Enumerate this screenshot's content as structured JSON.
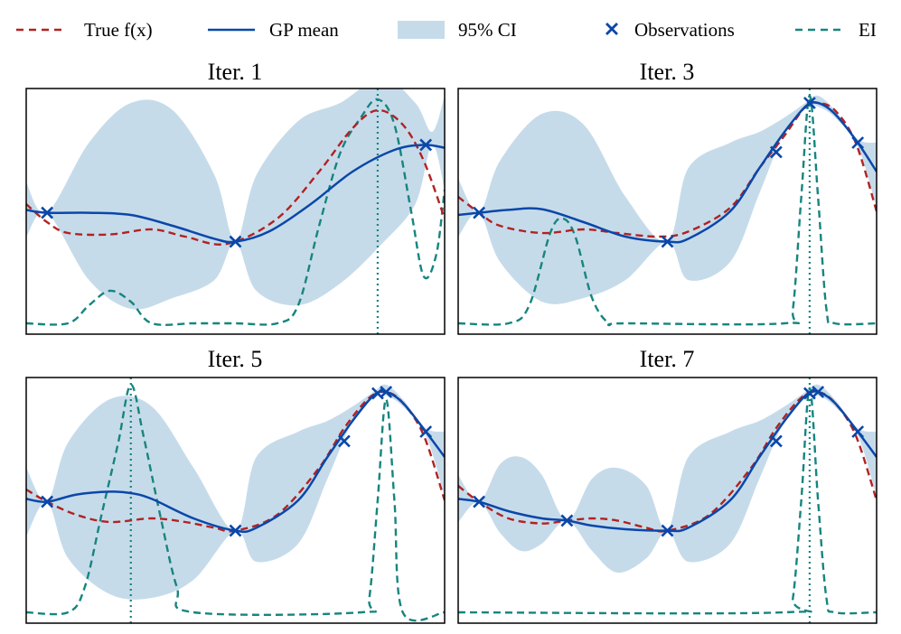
{
  "legend": {
    "true_fx": "True f(x)",
    "gp_mean": "GP mean",
    "ci": "95% CI",
    "observations": "Observations",
    "ei": "EI"
  },
  "colors": {
    "true_fx": "#b22222",
    "gp_mean": "#0a47a9",
    "ci": "#c6dbea",
    "observations": "#0a47a9",
    "ei": "#16857f",
    "proposal": "#16857f"
  },
  "chart_data": [
    {
      "type": "line",
      "title": "Iter. 1",
      "xlim": [
        0,
        1
      ],
      "ylim": [
        -1.7,
        1.7
      ],
      "xlabel": "",
      "ylabel": "",
      "grid": false,
      "series": {
        "true_fx": {
          "x": [
            0,
            0.05,
            0.1,
            0.2,
            0.3,
            0.38,
            0.48,
            0.6,
            0.7,
            0.78,
            0.84,
            0.9,
            0.95,
            1.0
          ],
          "y": [
            0.1,
            -0.15,
            -0.3,
            -0.32,
            -0.25,
            -0.35,
            -0.45,
            -0.1,
            0.55,
            1.15,
            1.4,
            1.2,
            0.7,
            -0.1
          ]
        },
        "gp_mean": {
          "x": [
            0,
            0.05,
            0.15,
            0.25,
            0.35,
            0.45,
            0.5,
            0.58,
            0.68,
            0.78,
            0.88,
            0.95,
            1.0
          ],
          "y": [
            0.02,
            -0.02,
            -0.02,
            -0.05,
            -0.2,
            -0.38,
            -0.42,
            -0.28,
            0.1,
            0.55,
            0.85,
            0.92,
            0.88
          ]
        },
        "ci_upper": {
          "x": [
            0,
            0.05,
            0.15,
            0.25,
            0.35,
            0.45,
            0.5,
            0.55,
            0.65,
            0.75,
            0.85,
            0.93,
            0.97,
            1.0
          ],
          "y": [
            0.4,
            -0.02,
            0.95,
            1.5,
            1.4,
            0.5,
            -0.42,
            0.5,
            1.25,
            1.5,
            1.85,
            1.5,
            1.1,
            1.6
          ]
        },
        "ci_lower": {
          "x": [
            0,
            0.05,
            0.15,
            0.25,
            0.35,
            0.45,
            0.5,
            0.55,
            0.65,
            0.75,
            0.85,
            0.93,
            0.97,
            1.0
          ],
          "y": [
            -0.35,
            -0.02,
            -0.95,
            -1.35,
            -1.2,
            -0.95,
            -0.42,
            -1.1,
            -1.3,
            -1.0,
            -0.45,
            0.1,
            0.92,
            0.3
          ]
        },
        "ei": {
          "x": [
            0,
            0.1,
            0.15,
            0.2,
            0.25,
            0.3,
            0.4,
            0.5,
            0.6,
            0.65,
            0.7,
            0.75,
            0.8,
            0.84,
            0.88,
            0.92,
            0.95,
            0.98,
            1.0
          ],
          "y": [
            -1.55,
            -1.55,
            -1.3,
            -1.1,
            -1.25,
            -1.55,
            -1.55,
            -1.55,
            -1.55,
            -1.3,
            -0.2,
            0.8,
            1.3,
            1.55,
            1.2,
            0.0,
            -0.9,
            -0.6,
            0.3
          ]
        },
        "observations": {
          "x": [
            0.05,
            0.5,
            0.955
          ],
          "y": [
            -0.02,
            -0.42,
            0.92
          ]
        },
        "proposal_x": 0.84
      }
    },
    {
      "type": "line",
      "title": "Iter. 3",
      "xlim": [
        0,
        1
      ],
      "ylim": [
        -1.7,
        1.7
      ],
      "xlabel": "",
      "ylabel": "",
      "grid": false,
      "series": {
        "true_fx": {
          "x": [
            0,
            0.05,
            0.1,
            0.2,
            0.3,
            0.38,
            0.48,
            0.55,
            0.65,
            0.72,
            0.78,
            0.83,
            0.86,
            0.9,
            0.95,
            1.0
          ],
          "y": [
            0.2,
            -0.02,
            -0.2,
            -0.3,
            -0.25,
            -0.3,
            -0.35,
            -0.28,
            0.05,
            0.6,
            1.05,
            1.45,
            1.5,
            1.4,
            0.95,
            0.0
          ]
        },
        "gp_mean": {
          "x": [
            0,
            0.05,
            0.12,
            0.2,
            0.3,
            0.4,
            0.5,
            0.55,
            0.65,
            0.72,
            0.78,
            0.83,
            0.86,
            0.9,
            0.955,
            1.0
          ],
          "y": [
            -0.05,
            -0.02,
            0.02,
            0.03,
            -0.15,
            -0.35,
            -0.42,
            -0.38,
            0.0,
            0.6,
            1.1,
            1.45,
            1.5,
            1.35,
            0.95,
            0.55
          ]
        },
        "ci_upper": {
          "x": [
            0,
            0.05,
            0.1,
            0.2,
            0.3,
            0.4,
            0.5,
            0.55,
            0.65,
            0.72,
            0.78,
            0.83,
            0.86,
            0.9,
            0.955,
            1.0
          ],
          "y": [
            0.45,
            -0.02,
            0.7,
            1.35,
            1.2,
            0.2,
            -0.42,
            0.6,
            0.95,
            1.1,
            1.3,
            1.5,
            1.6,
            1.4,
            1.0,
            0.95
          ]
        },
        "ci_lower": {
          "x": [
            0,
            0.05,
            0.1,
            0.2,
            0.3,
            0.4,
            0.5,
            0.55,
            0.65,
            0.72,
            0.78,
            0.83,
            0.86,
            0.9,
            0.955,
            1.0
          ],
          "y": [
            -0.35,
            -0.02,
            -0.7,
            -1.25,
            -1.2,
            -0.95,
            -0.42,
            -0.95,
            -0.7,
            0.25,
            1.1,
            1.45,
            1.45,
            1.3,
            0.9,
            0.05
          ]
        },
        "ei": {
          "x": [
            0,
            0.12,
            0.17,
            0.22,
            0.25,
            0.28,
            0.32,
            0.36,
            0.4,
            0.78,
            0.8,
            0.82,
            0.84,
            0.86,
            0.88,
            0.9,
            1.0
          ],
          "y": [
            -1.55,
            -1.55,
            -1.3,
            -0.3,
            -0.1,
            -0.35,
            -1.2,
            -1.55,
            -1.55,
            -1.55,
            -1.35,
            0.2,
            1.6,
            0.2,
            -1.35,
            -1.55,
            -1.55
          ]
        },
        "observations": {
          "x": [
            0.05,
            0.5,
            0.76,
            0.84,
            0.955
          ],
          "y": [
            -0.02,
            -0.42,
            0.82,
            1.5,
            0.95
          ]
        },
        "proposal_x": 0.84
      }
    },
    {
      "type": "line",
      "title": "Iter. 5",
      "xlim": [
        0,
        1
      ],
      "ylim": [
        -1.7,
        1.7
      ],
      "xlabel": "",
      "ylabel": "",
      "grid": false,
      "series": {
        "true_fx": {
          "x": [
            0,
            0.05,
            0.12,
            0.2,
            0.3,
            0.38,
            0.45,
            0.5,
            0.6,
            0.7,
            0.76,
            0.82,
            0.86,
            0.9,
            0.95,
            1.0
          ],
          "y": [
            0.15,
            -0.02,
            -0.2,
            -0.3,
            -0.25,
            -0.3,
            -0.38,
            -0.42,
            -0.2,
            0.45,
            1.0,
            1.42,
            1.5,
            1.35,
            0.9,
            0.0
          ]
        },
        "gp_mean": {
          "x": [
            0,
            0.05,
            0.12,
            0.2,
            0.25,
            0.3,
            0.4,
            0.5,
            0.55,
            0.65,
            0.72,
            0.78,
            0.83,
            0.86,
            0.9,
            0.955,
            1.0
          ],
          "y": [
            0.02,
            -0.02,
            0.08,
            0.12,
            0.1,
            0.02,
            -0.25,
            -0.42,
            -0.38,
            0.0,
            0.6,
            1.1,
            1.45,
            1.5,
            1.35,
            0.95,
            0.6
          ]
        },
        "ci_upper": {
          "x": [
            0,
            0.05,
            0.1,
            0.2,
            0.3,
            0.4,
            0.5,
            0.55,
            0.65,
            0.72,
            0.78,
            0.83,
            0.86,
            0.9,
            0.955,
            1.0
          ],
          "y": [
            0.45,
            -0.02,
            0.8,
            1.4,
            1.3,
            0.45,
            -0.42,
            0.6,
            0.95,
            1.1,
            1.3,
            1.5,
            1.6,
            1.4,
            1.0,
            0.95
          ]
        },
        "ci_lower": {
          "x": [
            0,
            0.05,
            0.1,
            0.2,
            0.3,
            0.4,
            0.5,
            0.55,
            0.65,
            0.72,
            0.78,
            0.83,
            0.86,
            0.9,
            0.955,
            1.0
          ],
          "y": [
            -0.5,
            -0.02,
            -0.8,
            -1.3,
            -1.35,
            -1.1,
            -0.42,
            -0.85,
            -0.6,
            0.3,
            1.1,
            1.45,
            1.45,
            1.3,
            0.9,
            0.05
          ]
        },
        "ei": {
          "x": [
            0,
            0.1,
            0.14,
            0.18,
            0.22,
            0.25,
            0.28,
            0.32,
            0.36,
            0.4,
            0.8,
            0.82,
            0.84,
            0.86,
            0.88,
            0.9,
            1.0
          ],
          "y": [
            -1.55,
            -1.55,
            -1.2,
            -0.2,
            0.8,
            1.6,
            0.9,
            -0.2,
            -1.2,
            -1.55,
            -1.55,
            -1.35,
            0.0,
            1.4,
            0.0,
            -1.55,
            -1.55
          ]
        },
        "observations": {
          "x": [
            0.05,
            0.5,
            0.76,
            0.84,
            0.86,
            0.955
          ],
          "y": [
            -0.02,
            -0.42,
            0.82,
            1.48,
            1.5,
            0.95
          ]
        },
        "proposal_x": 0.25
      }
    },
    {
      "type": "line",
      "title": "Iter. 7",
      "xlim": [
        0,
        1
      ],
      "ylim": [
        -1.7,
        1.7
      ],
      "xlabel": "",
      "ylabel": "",
      "grid": false,
      "series": {
        "true_fx": {
          "x": [
            0,
            0.05,
            0.12,
            0.2,
            0.26,
            0.32,
            0.38,
            0.45,
            0.5,
            0.6,
            0.7,
            0.76,
            0.82,
            0.86,
            0.9,
            0.95,
            1.0
          ],
          "y": [
            0.2,
            -0.02,
            -0.25,
            -0.32,
            -0.28,
            -0.25,
            -0.28,
            -0.38,
            -0.42,
            -0.2,
            0.45,
            1.0,
            1.42,
            1.5,
            1.35,
            0.9,
            0.0
          ]
        },
        "gp_mean": {
          "x": [
            0,
            0.05,
            0.12,
            0.2,
            0.26,
            0.32,
            0.4,
            0.5,
            0.55,
            0.65,
            0.72,
            0.78,
            0.83,
            0.86,
            0.9,
            0.955,
            1.0
          ],
          "y": [
            0.02,
            -0.02,
            -0.15,
            -0.25,
            -0.28,
            -0.35,
            -0.4,
            -0.42,
            -0.38,
            0.0,
            0.6,
            1.1,
            1.45,
            1.5,
            1.35,
            0.95,
            0.6
          ]
        },
        "ci_upper": {
          "x": [
            0,
            0.05,
            0.1,
            0.15,
            0.2,
            0.26,
            0.32,
            0.38,
            0.45,
            0.5,
            0.55,
            0.65,
            0.72,
            0.78,
            0.83,
            0.86,
            0.9,
            0.955,
            1.0
          ],
          "y": [
            0.35,
            -0.02,
            0.5,
            0.6,
            0.35,
            -0.28,
            0.3,
            0.45,
            0.2,
            -0.42,
            0.6,
            0.95,
            1.1,
            1.3,
            1.5,
            1.6,
            1.4,
            1.0,
            0.95
          ]
        },
        "ci_lower": {
          "x": [
            0,
            0.05,
            0.1,
            0.15,
            0.2,
            0.26,
            0.32,
            0.38,
            0.45,
            0.5,
            0.55,
            0.65,
            0.72,
            0.78,
            0.83,
            0.86,
            0.9,
            0.955,
            1.0
          ],
          "y": [
            -0.3,
            -0.02,
            -0.45,
            -0.7,
            -0.6,
            -0.28,
            -0.7,
            -1.0,
            -0.8,
            -0.42,
            -0.85,
            -0.6,
            0.3,
            1.1,
            1.45,
            1.45,
            1.3,
            0.9,
            0.05
          ]
        },
        "ei": {
          "x": [
            0,
            0.78,
            0.8,
            0.82,
            0.84,
            0.86,
            0.88,
            0.9,
            1.0
          ],
          "y": [
            -1.55,
            -1.55,
            -1.35,
            0.0,
            1.55,
            0.0,
            -1.35,
            -1.55,
            -1.55
          ]
        },
        "observations": {
          "x": [
            0.05,
            0.26,
            0.5,
            0.76,
            0.84,
            0.86,
            0.955
          ],
          "y": [
            -0.02,
            -0.28,
            -0.42,
            0.82,
            1.48,
            1.5,
            0.95
          ]
        },
        "proposal_x": 0.84
      }
    }
  ]
}
